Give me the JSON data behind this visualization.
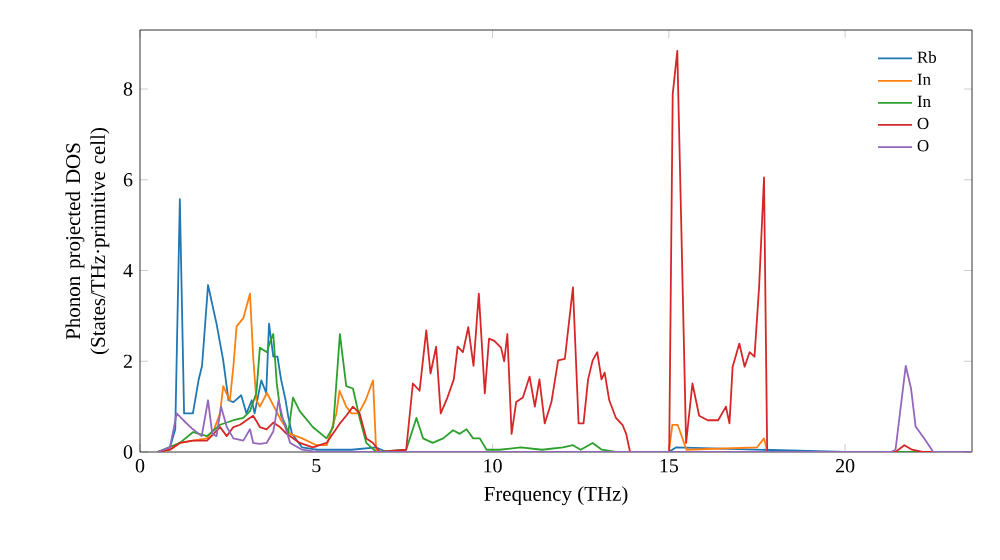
{
  "chart_data": {
    "type": "line",
    "xlabel": "Frequency (THz)",
    "ylabel": "Phonon projected DOS (States/THz·primitive cell)",
    "xlim": [
      0,
      23.6
    ],
    "ylim": [
      0,
      9.3
    ],
    "xticks": [
      0,
      5,
      10,
      15,
      20
    ],
    "yticks": [
      0,
      2,
      4,
      6,
      8
    ],
    "grid": false,
    "legend": "top right",
    "line_style": "solid",
    "series": [
      {
        "name": "Rb",
        "color": "#1f77b4",
        "x": [
          0.5,
          0.85,
          1.0,
          1.13,
          1.25,
          1.5,
          1.66,
          1.76,
          1.93,
          2.17,
          2.36,
          2.51,
          2.65,
          2.87,
          3.02,
          3.17,
          3.25,
          3.44,
          3.58,
          3.66,
          3.78,
          3.9,
          4.0,
          4.13,
          4.2,
          4.31,
          4.6,
          5.0,
          6.0,
          6.7,
          7.0,
          10.0,
          15.0,
          15.2,
          20.0,
          23.6
        ],
        "values": [
          0,
          0.1,
          0.5,
          5.57,
          0.85,
          0.85,
          1.58,
          1.9,
          3.68,
          2.83,
          2.02,
          1.14,
          1.1,
          1.25,
          0.85,
          1.14,
          0.85,
          1.58,
          1.3,
          2.83,
          2.1,
          2.1,
          1.6,
          1.14,
          0.8,
          0.4,
          0.1,
          0.05,
          0.05,
          0.1,
          0.0,
          0.0,
          0.0,
          0.1,
          0.0,
          0.0
        ]
      },
      {
        "name": "In",
        "color": "#ff7f0e",
        "x": [
          0.5,
          0.85,
          1.13,
          1.5,
          1.9,
          2.1,
          2.27,
          2.36,
          2.45,
          2.55,
          2.65,
          2.74,
          2.93,
          3.12,
          3.21,
          3.3,
          3.4,
          3.6,
          3.8,
          4.0,
          4.26,
          4.6,
          5.0,
          5.3,
          5.57,
          5.66,
          5.85,
          6.0,
          6.2,
          6.4,
          6.61,
          6.7,
          7.0,
          15.0,
          15.1,
          15.25,
          15.5,
          17.5,
          17.7,
          17.8,
          23.6
        ],
        "values": [
          0,
          0.05,
          0.2,
          0.25,
          0.3,
          0.5,
          0.85,
          1.45,
          1.3,
          1.14,
          1.9,
          2.77,
          2.95,
          3.49,
          2.1,
          1.14,
          1.0,
          1.3,
          1.0,
          0.7,
          0.4,
          0.3,
          0.15,
          0.15,
          0.85,
          1.35,
          1.0,
          0.85,
          0.85,
          1.14,
          1.58,
          0.0,
          0.0,
          0.0,
          0.6,
          0.6,
          0.05,
          0.1,
          0.3,
          0.0,
          0.0
        ]
      },
      {
        "name": "In",
        "color": "#2ca02c",
        "x": [
          0.5,
          0.85,
          1.13,
          1.51,
          1.9,
          2.27,
          2.65,
          2.93,
          3.12,
          3.3,
          3.4,
          3.6,
          3.7,
          3.78,
          3.88,
          4.0,
          4.13,
          4.2,
          4.34,
          4.53,
          4.9,
          5.29,
          5.48,
          5.67,
          5.85,
          6.04,
          6.23,
          6.42,
          6.7,
          7.55,
          7.84,
          8.03,
          8.3,
          8.6,
          8.88,
          9.07,
          9.26,
          9.45,
          9.64,
          9.83,
          10.2,
          10.8,
          11.4,
          12.0,
          12.28,
          12.5,
          12.84,
          13.1,
          13.5,
          23.6
        ],
        "values": [
          0,
          null,
          0.2,
          0.44,
          0.35,
          0.6,
          0.7,
          0.75,
          0.9,
          1.3,
          2.3,
          2.2,
          2.45,
          2.6,
          1.5,
          0.8,
          0.6,
          0.4,
          1.2,
          0.9,
          0.55,
          0.3,
          0.55,
          2.6,
          1.45,
          1.4,
          0.75,
          0.2,
          0.0,
          0.05,
          0.75,
          0.3,
          0.2,
          0.3,
          0.48,
          0.4,
          0.5,
          0.3,
          0.3,
          0.05,
          0.05,
          0.1,
          0.05,
          0.1,
          0.15,
          0.05,
          0.2,
          0.05,
          0.0,
          0.0
        ]
      },
      {
        "name": "O",
        "color": "#d62728",
        "x": [
          0.5,
          0.85,
          1.13,
          1.5,
          1.9,
          2.27,
          2.46,
          2.65,
          2.84,
          3.02,
          3.21,
          3.4,
          3.59,
          3.78,
          3.97,
          4.16,
          4.53,
          4.9,
          5.29,
          5.67,
          5.85,
          6.04,
          6.23,
          6.42,
          6.61,
          6.8,
          7.55,
          7.74,
          7.93,
          8.12,
          8.24,
          8.4,
          8.53,
          8.72,
          8.9,
          9.01,
          9.16,
          9.31,
          9.46,
          9.61,
          9.78,
          9.9,
          10.05,
          10.24,
          10.33,
          10.42,
          10.54,
          10.67,
          10.86,
          11.05,
          11.2,
          11.33,
          11.48,
          11.67,
          11.86,
          12.05,
          12.28,
          12.44,
          12.58,
          12.71,
          12.84,
          12.97,
          13.09,
          13.18,
          13.31,
          13.5,
          13.69,
          13.79,
          13.9,
          15.01,
          15.11,
          15.24,
          15.35,
          15.49,
          15.67,
          15.86,
          16.1,
          16.4,
          16.62,
          16.72,
          16.81,
          17.0,
          17.15,
          17.29,
          17.43,
          17.56,
          17.7,
          17.79,
          21.43,
          21.68,
          21.9,
          22.2,
          23.6
        ],
        "values": [
          0,
          0.05,
          0.2,
          0.25,
          0.25,
          0.55,
          0.35,
          0.55,
          0.6,
          0.7,
          0.8,
          0.55,
          0.5,
          0.65,
          0.55,
          0.4,
          0.2,
          0.1,
          0.2,
          0.63,
          0.8,
          1.0,
          0.85,
          0.3,
          0.2,
          0.0,
          0.05,
          1.51,
          1.35,
          2.68,
          1.73,
          2.32,
          0.85,
          1.2,
          1.6,
          2.32,
          2.2,
          2.75,
          1.9,
          3.49,
          1.29,
          2.5,
          2.45,
          2.3,
          2.0,
          2.6,
          0.4,
          1.1,
          1.2,
          1.66,
          1.0,
          1.6,
          0.63,
          1.1,
          2.02,
          2.05,
          3.63,
          0.63,
          0.63,
          1.6,
          2.02,
          2.2,
          1.6,
          1.75,
          1.14,
          0.75,
          0.59,
          0.4,
          0.0,
          0.0,
          7.88,
          8.84,
          5.1,
          0.2,
          1.51,
          0.8,
          0.7,
          0.7,
          1.0,
          0.63,
          1.88,
          2.39,
          1.88,
          2.2,
          2.1,
          3.63,
          6.05,
          0.0,
          0.0,
          0.15,
          0.05,
          0.0,
          0.0
        ]
      },
      {
        "name": "O",
        "color": "#9467bd",
        "x": [
          0.5,
          0.85,
          1.04,
          1.23,
          1.5,
          1.75,
          1.93,
          2.05,
          2.17,
          2.3,
          2.46,
          2.65,
          2.93,
          3.12,
          3.21,
          3.4,
          3.59,
          3.78,
          3.93,
          4.06,
          4.26,
          4.6,
          5.0,
          21.3,
          21.43,
          21.72,
          21.87,
          22.0,
          22.28,
          22.5,
          23.6
        ],
        "values": [
          0,
          0.1,
          0.85,
          0.7,
          0.5,
          0.35,
          1.14,
          0.4,
          0.35,
          1.0,
          0.55,
          0.3,
          0.25,
          0.5,
          0.2,
          0.18,
          0.2,
          0.45,
          1.14,
          0.7,
          0.2,
          0.05,
          0.0,
          0.0,
          0.05,
          1.9,
          1.4,
          0.56,
          0.26,
          0.0,
          0.0
        ]
      }
    ]
  }
}
